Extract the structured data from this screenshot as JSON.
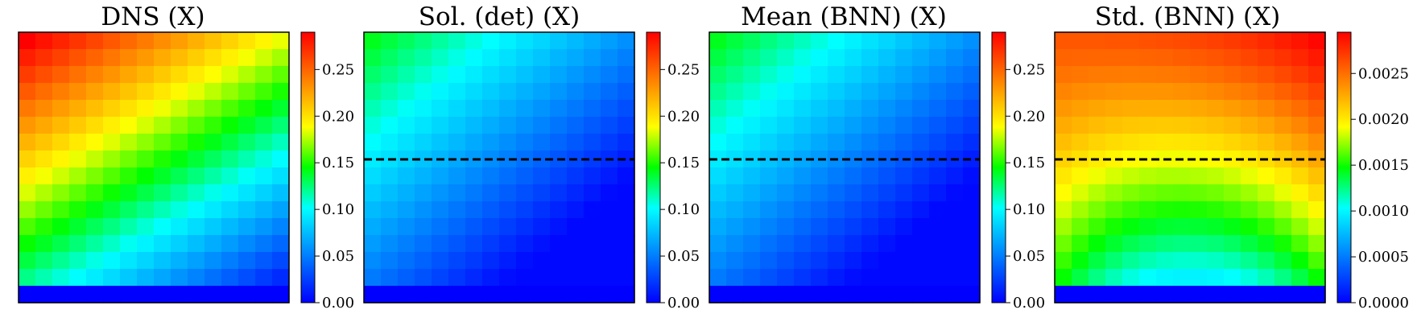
{
  "chart_data": [
    {
      "type": "heatmap",
      "title": "DNS (X)",
      "grid": [
        16,
        16
      ],
      "vmin": 0.0,
      "vmax": 0.29,
      "colorbar_ticks": [
        "0.00",
        "0.05",
        "0.10",
        "0.15",
        "0.20",
        "0.25"
      ],
      "colorbar_values": [
        0.0,
        0.05,
        0.1,
        0.15,
        0.2,
        0.25
      ],
      "dashed_line": false,
      "approx_field": "linear diagonal gradient: about 0.29 at top-left, about 0.02 at bottom-right, bottom row 0.00"
    },
    {
      "type": "heatmap",
      "title": "Sol. (det) (X)",
      "grid": [
        16,
        16
      ],
      "vmin": 0.0,
      "vmax": 0.29,
      "colorbar_ticks": [
        "0.00",
        "0.05",
        "0.10",
        "0.15",
        "0.20",
        "0.25"
      ],
      "colorbar_values": [
        0.0,
        0.05,
        0.1,
        0.15,
        0.2,
        0.25
      ],
      "dashed_line": true,
      "approx_field": "diagonal gradient: about 0.14 at top-left, about 0.0 toward bottom-right, bottom row 0.00"
    },
    {
      "type": "heatmap",
      "title": "Mean (BNN) (X)",
      "grid": [
        16,
        16
      ],
      "vmin": 0.0,
      "vmax": 0.29,
      "colorbar_ticks": [
        "0.00",
        "0.05",
        "0.10",
        "0.15",
        "0.20",
        "0.25"
      ],
      "colorbar_values": [
        0.0,
        0.05,
        0.1,
        0.15,
        0.2,
        0.25
      ],
      "dashed_line": true,
      "approx_field": "diagonal gradient: about 0.14 at top-left, about 0.0 toward bottom-right, bottom row 0.00"
    },
    {
      "type": "heatmap",
      "title": "Std. (BNN) (X)",
      "grid": [
        16,
        16
      ],
      "vmin": 0.0,
      "vmax": 0.00295,
      "colorbar_ticks": [
        "0.0000",
        "0.0005",
        "0.0010",
        "0.0015",
        "0.0020",
        "0.0025"
      ],
      "colorbar_values": [
        0.0,
        0.0005,
        0.001,
        0.0015,
        0.002,
        0.0025
      ],
      "dashed_line": true,
      "approx_field": "about 0.0029 at top, about 0.0010 near bottom-center, about 0.0015 bottom corners, bottom row 0.0000"
    }
  ]
}
